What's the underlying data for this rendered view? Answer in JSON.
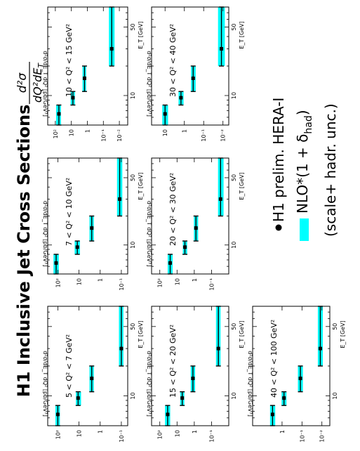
{
  "figure": {
    "title": "H1 Inclusive Jet Cross Sections",
    "formula_numerator": "d²σ",
    "formula_denominator": "dQ²dE",
    "formula_denominator_sub": "T",
    "legend": {
      "data_label": "H1 prelim. HERA-I",
      "nlo_label": "NLO*(1 + δ",
      "nlo_label_sub": "had",
      "nlo_label_end": ")",
      "nlo_label_line2": "(scale+ hadr. unc.)"
    },
    "colors": {
      "nlo_band": "#00ffff",
      "data": "#000000"
    }
  },
  "chart_data": [
    {
      "type": "scatter",
      "orientation": "rotated-90",
      "title": "5 < Q² < 7 GeV²",
      "xlabel": "E_T [GeV]",
      "ylabel": "d²σ/dE_T dQ² [pb/GeV³]",
      "xscale": "log",
      "yscale": "log",
      "xlim": [
        5,
        80
      ],
      "ylim": [
        0.05,
        300
      ],
      "xticks": [
        10,
        50
      ],
      "xtick_labels": [
        "10",
        "50"
      ],
      "yticks": [
        100,
        10,
        1,
        0.1
      ],
      "ytick_labels": [
        "10²",
        "10",
        "1",
        "10⁻¹"
      ],
      "series": [
        {
          "name": "H1 prelim. HERA-I",
          "kind": "points",
          "x": [
            6.5,
            9.5,
            15,
            30
          ],
          "x_err": [
            [
              5,
              8
            ],
            [
              8,
              11
            ],
            [
              11,
              20
            ],
            [
              20,
              80
            ]
          ],
          "y": [
            100,
            11,
            2.5,
            0.1
          ]
        },
        {
          "name": "NLO*(1 + δhad)",
          "kind": "band",
          "x": [
            6.5,
            9.5,
            15,
            30
          ],
          "x_err": [
            [
              5,
              8
            ],
            [
              8,
              11
            ],
            [
              11,
              20
            ],
            [
              20,
              80
            ]
          ],
          "y_low": [
            80,
            8,
            2,
            0.08
          ],
          "y_high": [
            130,
            14,
            3.2,
            0.13
          ]
        }
      ]
    },
    {
      "type": "scatter",
      "orientation": "rotated-90",
      "title": "7 < Q² < 10 GeV²",
      "xlabel": "E_T [GeV]",
      "ylabel": "d²σ/dE_T dQ² [pb/GeV³]",
      "xscale": "log",
      "yscale": "log",
      "xlim": [
        5,
        80
      ],
      "ylim": [
        0.05,
        300
      ],
      "xticks": [
        10,
        50
      ],
      "xtick_labels": [
        "10",
        "50"
      ],
      "yticks": [
        100,
        10,
        1,
        0.1
      ],
      "ytick_labels": [
        "10²",
        "10",
        "1",
        "10⁻¹"
      ],
      "series": [
        {
          "name": "H1 prelim. HERA-I",
          "kind": "points",
          "x": [
            6.5,
            9.5,
            15,
            30
          ],
          "x_err": [
            [
              5,
              8
            ],
            [
              8,
              11
            ],
            [
              11,
              20
            ],
            [
              20,
              80
            ]
          ],
          "y": [
            120,
            12,
            2.5,
            0.12
          ]
        },
        {
          "name": "NLO*(1 + δhad)",
          "kind": "band",
          "x": [
            6.5,
            9.5,
            15,
            30
          ],
          "x_err": [
            [
              5,
              8
            ],
            [
              8,
              11
            ],
            [
              11,
              20
            ],
            [
              20,
              80
            ]
          ],
          "y_low": [
            90,
            9,
            2,
            0.09
          ],
          "y_high": [
            160,
            16,
            3.2,
            0.16
          ]
        }
      ]
    },
    {
      "type": "scatter",
      "orientation": "rotated-90",
      "title": "10 < Q² < 15 GeV²",
      "xlabel": "E_T [GeV]",
      "ylabel": "d²σ/dE_T dQ² [pb/GeV³]",
      "xscale": "log",
      "yscale": "log",
      "xlim": [
        5,
        80
      ],
      "ylim": [
        0.003,
        300
      ],
      "xticks": [
        10,
        50
      ],
      "xtick_labels": [
        "10",
        "50"
      ],
      "yticks": [
        100,
        10,
        1,
        0.1,
        0.01
      ],
      "ytick_labels": [
        "10²",
        "10",
        "1",
        "10⁻¹",
        "10⁻²"
      ],
      "series": [
        {
          "name": "H1 prelim. HERA-I",
          "kind": "points",
          "x": [
            6.5,
            9.5,
            15,
            30
          ],
          "x_err": [
            [
              5,
              8
            ],
            [
              8,
              11
            ],
            [
              11,
              20
            ],
            [
              20,
              80
            ]
          ],
          "y": [
            60,
            8,
            1.5,
            0.03
          ]
        },
        {
          "name": "NLO*(1 + δhad)",
          "kind": "band",
          "x": [
            6.5,
            9.5,
            15,
            30
          ],
          "x_err": [
            [
              5,
              8
            ],
            [
              8,
              11
            ],
            [
              11,
              20
            ],
            [
              20,
              80
            ]
          ],
          "y_low": [
            45,
            6,
            1.2,
            0.02
          ],
          "y_high": [
            90,
            11,
            2,
            0.045
          ]
        }
      ]
    },
    {
      "type": "scatter",
      "orientation": "rotated-90",
      "title": "15 < Q² < 20 GeV²",
      "xlabel": "E_T [GeV]",
      "ylabel": "d²σ/dE_T dQ² [pb/GeV³]",
      "xscale": "log",
      "yscale": "log",
      "xlim": [
        5,
        80
      ],
      "ylim": [
        0.01,
        300
      ],
      "xticks": [
        10,
        50
      ],
      "xtick_labels": [
        "10",
        "50"
      ],
      "yticks": [
        100,
        10,
        1,
        0.1
      ],
      "ytick_labels": [
        "10²",
        "10",
        "1",
        "10⁻¹"
      ],
      "series": [
        {
          "name": "H1 prelim. HERA-I",
          "kind": "points",
          "x": [
            6.5,
            9.5,
            15,
            30
          ],
          "x_err": [
            [
              5,
              8
            ],
            [
              8,
              11
            ],
            [
              11,
              20
            ],
            [
              20,
              80
            ]
          ],
          "y": [
            35,
            5,
            1.2,
            0.04
          ]
        },
        {
          "name": "NLO*(1 + δhad)",
          "kind": "band",
          "x": [
            6.5,
            9.5,
            15,
            30
          ],
          "x_err": [
            [
              5,
              8
            ],
            [
              8,
              11
            ],
            [
              11,
              20
            ],
            [
              20,
              80
            ]
          ],
          "y_low": [
            25,
            3.8,
            0.9,
            0.03
          ],
          "y_high": [
            50,
            6.5,
            1.6,
            0.055
          ]
        }
      ]
    },
    {
      "type": "scatter",
      "orientation": "rotated-90",
      "title": "20 < Q² < 30 GeV²",
      "xlabel": "E_T [GeV]",
      "ylabel": "d²σ/dE_T dQ² [pb/GeV³]",
      "xscale": "log",
      "yscale": "log",
      "xlim": [
        5,
        80
      ],
      "ylim": [
        0.01,
        300
      ],
      "xticks": [
        10,
        50
      ],
      "xtick_labels": [
        "10",
        "50"
      ],
      "yticks": [
        100,
        10,
        1,
        0.1
      ],
      "ytick_labels": [
        "10²",
        "10",
        "1",
        "10⁻¹"
      ],
      "series": [
        {
          "name": "H1 prelim. HERA-I",
          "kind": "points",
          "x": [
            6.5,
            9.5,
            15,
            30
          ],
          "x_err": [
            [
              5,
              8
            ],
            [
              8,
              11
            ],
            [
              11,
              20
            ],
            [
              20,
              80
            ]
          ],
          "y": [
            25,
            3.5,
            0.8,
            0.03
          ]
        },
        {
          "name": "NLO*(1 + δhad)",
          "kind": "band",
          "x": [
            6.5,
            9.5,
            15,
            30
          ],
          "x_err": [
            [
              5,
              8
            ],
            [
              8,
              11
            ],
            [
              11,
              20
            ],
            [
              20,
              80
            ]
          ],
          "y_low": [
            18,
            2.6,
            0.6,
            0.02
          ],
          "y_high": [
            35,
            4.6,
            1.05,
            0.042
          ]
        }
      ]
    },
    {
      "type": "scatter",
      "orientation": "rotated-90",
      "title": "30 < Q² < 40 GeV²",
      "xlabel": "E_T [GeV]",
      "ylabel": "d²σ/dE_T dQ² [pb/GeV³]",
      "xscale": "log",
      "yscale": "log",
      "xlim": [
        5,
        80
      ],
      "ylim": [
        0.005,
        50
      ],
      "xticks": [
        10,
        50
      ],
      "xtick_labels": [
        "10",
        "50"
      ],
      "yticks": [
        10,
        1,
        0.1,
        0.01
      ],
      "ytick_labels": [
        "10",
        "1",
        "10⁻¹",
        "10⁻²"
      ],
      "series": [
        {
          "name": "H1 prelim. HERA-I",
          "kind": "points",
          "x": [
            6.5,
            9.5,
            15,
            30
          ],
          "x_err": [
            [
              5,
              8
            ],
            [
              8,
              11
            ],
            [
              11,
              20
            ],
            [
              20,
              80
            ]
          ],
          "y": [
            10,
            1.5,
            0.35,
            0.012
          ]
        },
        {
          "name": "NLO*(1 + δhad)",
          "kind": "band",
          "x": [
            6.5,
            9.5,
            15,
            30
          ],
          "x_err": [
            [
              5,
              8
            ],
            [
              8,
              11
            ],
            [
              11,
              20
            ],
            [
              20,
              80
            ]
          ],
          "y_low": [
            7,
            1.1,
            0.26,
            0.008
          ],
          "y_high": [
            14,
            2,
            0.45,
            0.018
          ]
        }
      ]
    },
    {
      "type": "scatter",
      "orientation": "rotated-90",
      "title": "40 < Q² < 100 GeV²",
      "xlabel": "E_T [GeV]",
      "ylabel": "d²σ/dE_T dQ² [pb/GeV³]",
      "xscale": "log",
      "yscale": "log",
      "xlim": [
        5,
        80
      ],
      "ylim": [
        0.004,
        30
      ],
      "xticks": [
        10,
        50
      ],
      "xtick_labels": [
        "10",
        "50"
      ],
      "yticks": [
        1,
        0.1,
        0.01
      ],
      "ytick_labels": [
        "1",
        "10⁻¹",
        "10⁻²"
      ],
      "series": [
        {
          "name": "H1 prelim. HERA-I",
          "kind": "points",
          "x": [
            6.5,
            9.5,
            15,
            30
          ],
          "x_err": [
            [
              5,
              8
            ],
            [
              8,
              11
            ],
            [
              11,
              20
            ],
            [
              20,
              80
            ]
          ],
          "y": [
            3,
            0.8,
            0.12,
            0.012
          ]
        },
        {
          "name": "NLO*(1 + δhad)",
          "kind": "band",
          "x": [
            6.5,
            9.5,
            15,
            30
          ],
          "x_err": [
            [
              5,
              8
            ],
            [
              8,
              11
            ],
            [
              11,
              20
            ],
            [
              20,
              80
            ]
          ],
          "y_low": [
            2.2,
            0.6,
            0.09,
            0.009
          ],
          "y_high": [
            4,
            1.05,
            0.16,
            0.016
          ]
        }
      ]
    }
  ]
}
